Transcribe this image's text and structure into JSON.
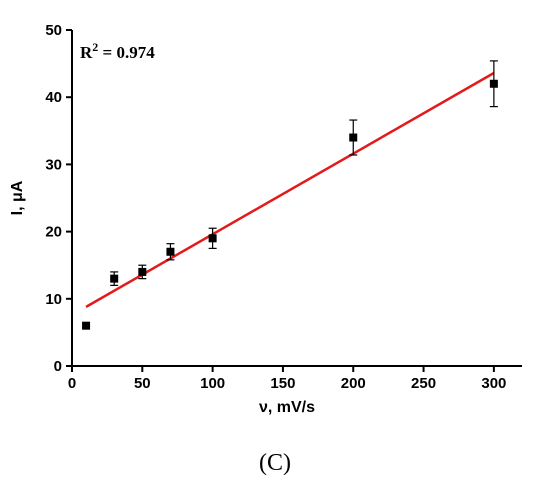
{
  "chart_data": {
    "type": "scatter",
    "xlabel": "ν, mV/s",
    "ylabel": "I, μA",
    "xlim": [
      0,
      320
    ],
    "ylim": [
      0,
      50
    ],
    "xticks": [
      0,
      50,
      100,
      150,
      200,
      250,
      300
    ],
    "yticks": [
      0,
      10,
      20,
      30,
      40,
      50
    ],
    "x": [
      10,
      30,
      50,
      70,
      100,
      200,
      300
    ],
    "y": [
      6,
      13,
      14,
      17,
      19,
      34,
      42
    ],
    "yerr": [
      0,
      1.0,
      1.0,
      1.2,
      1.5,
      2.6,
      3.4
    ],
    "fit_line": {
      "x": [
        10,
        300
      ],
      "y": [
        8.8,
        43.6
      ],
      "color": "#e31a1c"
    },
    "annotation": {
      "prefix": "R",
      "sup": "2",
      "text": " = 0.974"
    },
    "marker_color": "#000000",
    "grid": false,
    "legend": false
  },
  "panel_label": "(C)"
}
